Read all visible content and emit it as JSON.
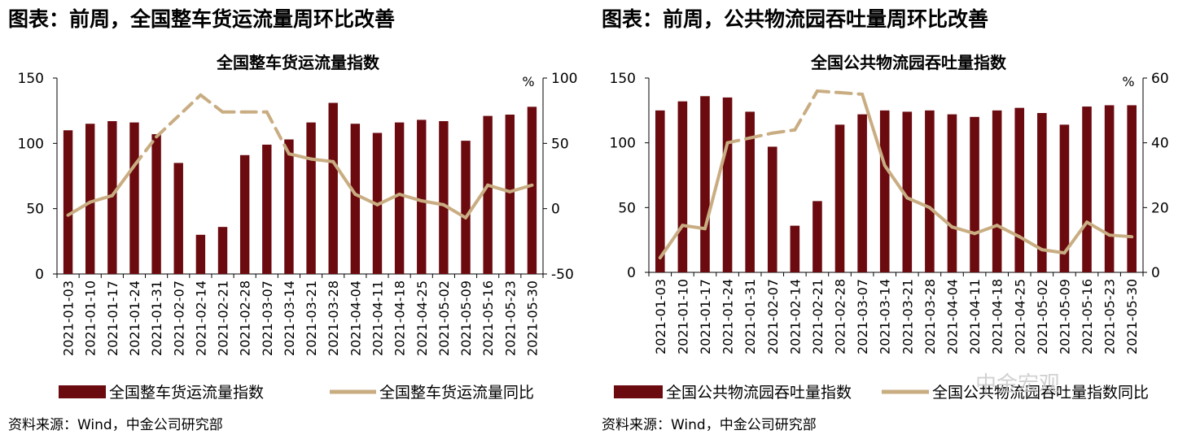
{
  "panels": [
    {
      "heading": "图表：前周，全国整车货运流量周环比改善",
      "source": "资料来源：Wind，中金公司研究部",
      "chart_data": {
        "type": "bar",
        "title": "全国整车货运流量指数",
        "categories": [
          "2021-01-03",
          "2021-01-10",
          "2021-01-17",
          "2021-01-24",
          "2021-01-31",
          "2021-02-07",
          "2021-02-14",
          "2021-02-21",
          "2021-02-28",
          "2021-03-07",
          "2021-03-14",
          "2021-03-21",
          "2021-03-28",
          "2021-04-04",
          "2021-04-11",
          "2021-04-18",
          "2021-04-25",
          "2021-05-02",
          "2021-05-09",
          "2021-05-16",
          "2021-05-23",
          "2021-05-30"
        ],
        "y_left": {
          "ticks": [
            "150",
            "100",
            "50",
            "0"
          ],
          "range": [
            0,
            150
          ]
        },
        "y_right": {
          "ticks": [
            "100",
            "50",
            "0",
            "-50"
          ],
          "range": [
            -50,
            100
          ],
          "unit": "%"
        },
        "series": [
          {
            "name": "全国整车货运流量指数",
            "kind": "bar",
            "axis": "left",
            "color": "#6b0a0f",
            "values": [
              110,
              115,
              117,
              116,
              107,
              85,
              30,
              36,
              91,
              99,
              103,
              116,
              131,
              115,
              108,
              116,
              118,
              117,
              102,
              121,
              122,
              128
            ]
          },
          {
            "name": "全国整车货运流量同比",
            "kind": "line",
            "axis": "right",
            "color": "#c9ad82",
            "values": [
              -5,
              5,
              10,
              33,
              55,
              null,
              87,
              74,
              74,
              74,
              42,
              38,
              36,
              11,
              3,
              11,
              6,
              3,
              -7,
              18,
              13,
              18
            ],
            "dashed_segments": [
              [
                3,
                6
              ],
              [
                6,
                10
              ]
            ]
          }
        ],
        "grid": false,
        "legend_position": "bottom"
      }
    },
    {
      "heading": "图表：前周，公共物流园吞吐量周环比改善",
      "source": "资料来源：Wind，中金公司研究部",
      "chart_data": {
        "type": "bar",
        "title": "全国公共物流园吞吐量指数",
        "categories": [
          "2021-01-03",
          "2021-01-10",
          "2021-01-17",
          "2021-01-24",
          "2021-01-31",
          "2021-02-07",
          "2021-02-14",
          "2021-02-21",
          "2021-02-28",
          "2021-03-07",
          "2021-03-14",
          "2021-03-21",
          "2021-03-28",
          "2021-04-04",
          "2021-04-11",
          "2021-04-18",
          "2021-04-25",
          "2021-05-02",
          "2021-05-09",
          "2021-05-16",
          "2021-05-23",
          "2021-05-30"
        ],
        "y_left": {
          "ticks": [
            "150",
            "100",
            "50",
            "0"
          ],
          "range": [
            0,
            150
          ]
        },
        "y_right": {
          "ticks": [
            "60",
            "40",
            "20",
            "0"
          ],
          "range": [
            0,
            60
          ],
          "unit": "%"
        },
        "series": [
          {
            "name": "全国公共物流园吞吐量指数",
            "kind": "bar",
            "axis": "left",
            "color": "#6b0a0f",
            "values": [
              125,
              132,
              136,
              135,
              124,
              97,
              36,
              55,
              114,
              122,
              125,
              124,
              125,
              122,
              120,
              125,
              127,
              123,
              114,
              128,
              129,
              129
            ]
          },
          {
            "name": "全国公共物流园吞吐量指数同比",
            "kind": "line",
            "axis": "right",
            "color": "#c9ad82",
            "values": [
              4.5,
              14.5,
              13.5,
              40,
              41.5,
              43,
              44,
              56,
              55.5,
              55,
              33,
              23,
              20,
              14,
              12,
              14.5,
              11,
              7,
              6,
              15.5,
              11.5,
              11
            ],
            "dashed_segments": [
              [
                3,
                7
              ],
              [
                7,
                9
              ]
            ]
          }
        ],
        "grid": false,
        "legend_position": "bottom"
      }
    }
  ],
  "watermark": "中金宏观"
}
